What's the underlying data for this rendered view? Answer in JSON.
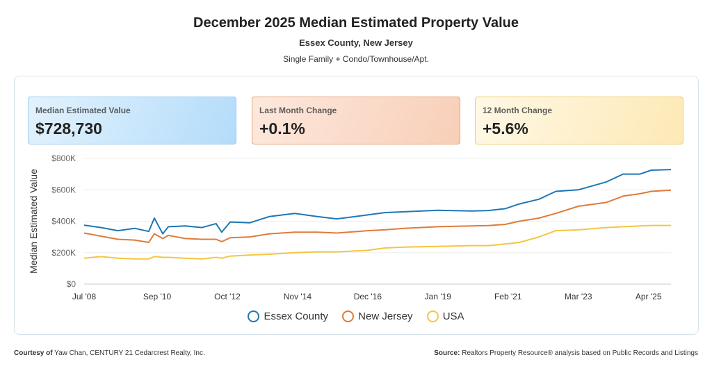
{
  "header": {
    "title": "December 2025 Median Estimated Property Value",
    "subtitle": "Essex County, New Jersey",
    "property_types": "Single Family + Condo/Townhouse/Apt."
  },
  "cards": [
    {
      "label": "Median Estimated Value",
      "value": "$728,730"
    },
    {
      "label": "Last Month Change",
      "value": "+0.1%"
    },
    {
      "label": "12 Month Change",
      "value": "+5.6%"
    }
  ],
  "footer": {
    "courtesy_label": "Courtesy of",
    "courtesy_text": "Yaw Chan, CENTURY 21 Cedarcrest Realty, Inc.",
    "source_label": "Source:",
    "source_text": "Realtors Property Resource® analysis based on Public Records and Listings"
  },
  "chart_data": {
    "type": "line",
    "ylabel": "Median Estimated Value",
    "xlabel": "",
    "ylim": [
      0,
      800000
    ],
    "yticks": [
      "$0",
      "$200K",
      "$400K",
      "$600K",
      "$800K"
    ],
    "ytick_values": [
      0,
      200000,
      400000,
      600000,
      800000
    ],
    "xticks": [
      "Jul '08",
      "Sep '10",
      "Oct '12",
      "Nov '14",
      "Dec '16",
      "Jan '19",
      "Feb '21",
      "Mar '23",
      "Apr '25"
    ],
    "xtick_dates": [
      "2008-07",
      "2010-09",
      "2012-10",
      "2014-11",
      "2016-12",
      "2019-01",
      "2021-02",
      "2023-03",
      "2025-04"
    ],
    "xlim": [
      "2008-07",
      "2025-12"
    ],
    "grid": true,
    "legend_position": "bottom",
    "x": [
      "2008-07",
      "2009-01",
      "2009-07",
      "2010-01",
      "2010-06",
      "2010-08",
      "2010-11",
      "2011-01",
      "2011-07",
      "2012-01",
      "2012-06",
      "2012-08",
      "2012-11",
      "2013-06",
      "2014-01",
      "2014-10",
      "2015-06",
      "2016-01",
      "2016-12",
      "2017-06",
      "2018-01",
      "2019-01",
      "2020-01",
      "2020-07",
      "2021-01",
      "2021-06",
      "2022-01",
      "2022-07",
      "2023-03",
      "2024-01",
      "2024-07",
      "2025-01",
      "2025-05",
      "2025-12"
    ],
    "series": [
      {
        "name": "Essex County",
        "color": "#1f77b4",
        "values": [
          375000,
          360000,
          340000,
          355000,
          335000,
          420000,
          320000,
          365000,
          370000,
          360000,
          385000,
          330000,
          395000,
          390000,
          430000,
          450000,
          430000,
          415000,
          440000,
          455000,
          460000,
          470000,
          465000,
          468000,
          480000,
          510000,
          540000,
          590000,
          600000,
          650000,
          700000,
          700000,
          725000,
          728730
        ]
      },
      {
        "name": "New Jersey",
        "color": "#e07b39",
        "values": [
          325000,
          305000,
          285000,
          280000,
          265000,
          320000,
          290000,
          310000,
          290000,
          285000,
          285000,
          270000,
          295000,
          300000,
          320000,
          330000,
          330000,
          325000,
          340000,
          345000,
          355000,
          365000,
          370000,
          372000,
          380000,
          400000,
          420000,
          450000,
          495000,
          520000,
          560000,
          575000,
          590000,
          598000
        ]
      },
      {
        "name": "USA",
        "color": "#f5c542",
        "values": [
          165000,
          175000,
          165000,
          160000,
          160000,
          175000,
          170000,
          170000,
          165000,
          160000,
          170000,
          165000,
          178000,
          185000,
          190000,
          200000,
          205000,
          205000,
          215000,
          230000,
          235000,
          240000,
          245000,
          245000,
          255000,
          265000,
          300000,
          340000,
          345000,
          360000,
          365000,
          370000,
          373000,
          373000
        ]
      }
    ]
  }
}
